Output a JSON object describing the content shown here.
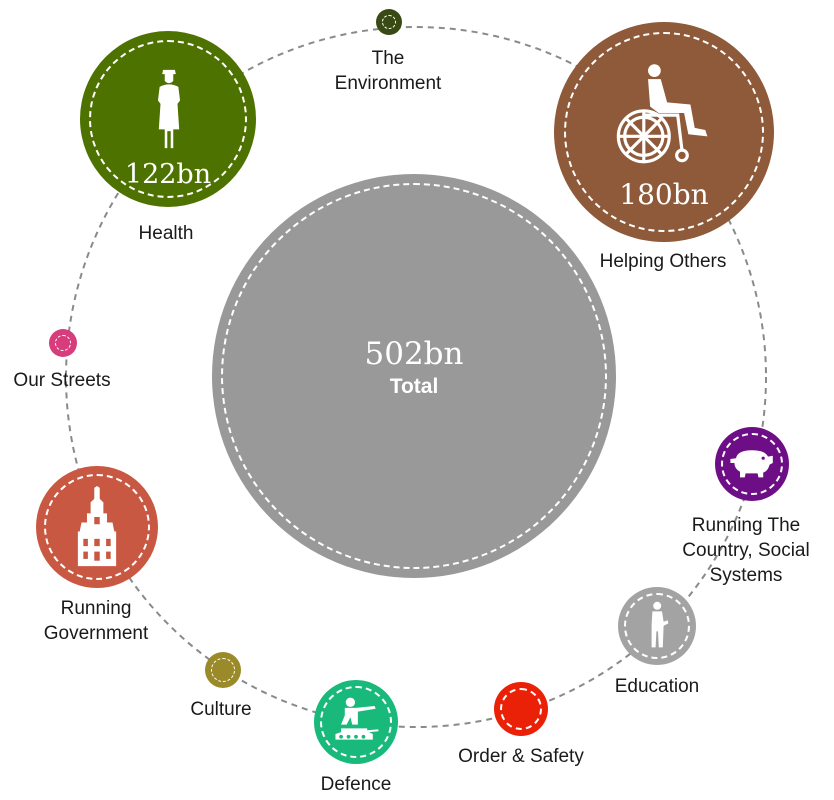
{
  "total": {
    "value": "502bn",
    "label": "Total",
    "color": "#999999"
  },
  "categories": [
    {
      "id": "health",
      "label_lines": [
        "Health"
      ],
      "value": "122bn",
      "color": "#4d7200",
      "icon": "nurse-icon"
    },
    {
      "id": "environment",
      "label_lines": [
        "The",
        "Environment"
      ],
      "value": "",
      "color": "#3a4a14",
      "icon": ""
    },
    {
      "id": "helping-others",
      "label_lines": [
        "Helping Others"
      ],
      "value": "180bn",
      "color": "#8e5a3a",
      "icon": "wheelchair-icon"
    },
    {
      "id": "running-country",
      "label_lines": [
        "Running The",
        "Country, Social",
        "Systems"
      ],
      "value": "",
      "color": "#6e0e86",
      "icon": "piggy-bank-icon"
    },
    {
      "id": "education",
      "label_lines": [
        "Education"
      ],
      "value": "",
      "color": "#a3a3a3",
      "icon": "student-icon"
    },
    {
      "id": "order-safety",
      "label_lines": [
        "Order & Safety"
      ],
      "value": "",
      "color": "#ea2107",
      "icon": ""
    },
    {
      "id": "defence",
      "label_lines": [
        "Defence"
      ],
      "value": "",
      "color": "#19b97b",
      "icon": "soldier-tank-icon"
    },
    {
      "id": "culture",
      "label_lines": [
        "Culture"
      ],
      "value": "",
      "color": "#9a8a2a",
      "icon": ""
    },
    {
      "id": "running-government",
      "label_lines": [
        "Running",
        "Government"
      ],
      "value": "",
      "color": "#c85842",
      "icon": "government-building-icon"
    },
    {
      "id": "our-streets",
      "label_lines": [
        "Our Streets"
      ],
      "value": "",
      "color": "#d73c7c",
      "icon": ""
    }
  ]
}
